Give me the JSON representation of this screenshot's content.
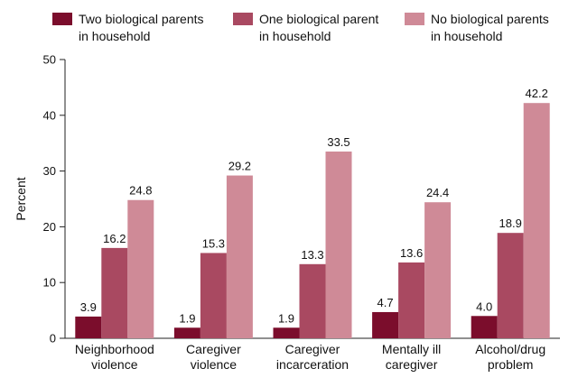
{
  "chart_data": {
    "type": "bar",
    "title": "",
    "xlabel": "",
    "ylabel": "Percent",
    "ylim": [
      0,
      50
    ],
    "yticks": [
      0,
      10,
      20,
      30,
      40,
      50
    ],
    "grid": false,
    "legend_position": "top",
    "categories": [
      [
        "Neighborhood",
        "violence"
      ],
      [
        "Caregiver",
        "violence"
      ],
      [
        "Caregiver",
        "incarceration"
      ],
      [
        "Mentally ill",
        "caregiver"
      ],
      [
        "Alcohol/drug",
        "problem"
      ]
    ],
    "series": [
      {
        "name": [
          "Two biological parents",
          "in household"
        ],
        "color": "#7b0d2c",
        "values": [
          3.9,
          1.9,
          1.9,
          4.7,
          4.0
        ],
        "labels": [
          "3.9",
          "1.9",
          "1.9",
          "4.7",
          "4.0"
        ]
      },
      {
        "name": [
          "One biological parent",
          "in household"
        ],
        "color": "#a94961",
        "values": [
          16.2,
          15.3,
          13.3,
          13.6,
          18.9
        ],
        "labels": [
          "16.2",
          "15.3",
          "13.3",
          "13.6",
          "18.9"
        ]
      },
      {
        "name": [
          "No biological parents",
          "in household"
        ],
        "color": "#cf8a97",
        "values": [
          24.8,
          29.2,
          33.5,
          24.4,
          42.2
        ],
        "labels": [
          "24.8",
          "29.2",
          "33.5",
          "24.4",
          "42.2"
        ]
      }
    ]
  }
}
